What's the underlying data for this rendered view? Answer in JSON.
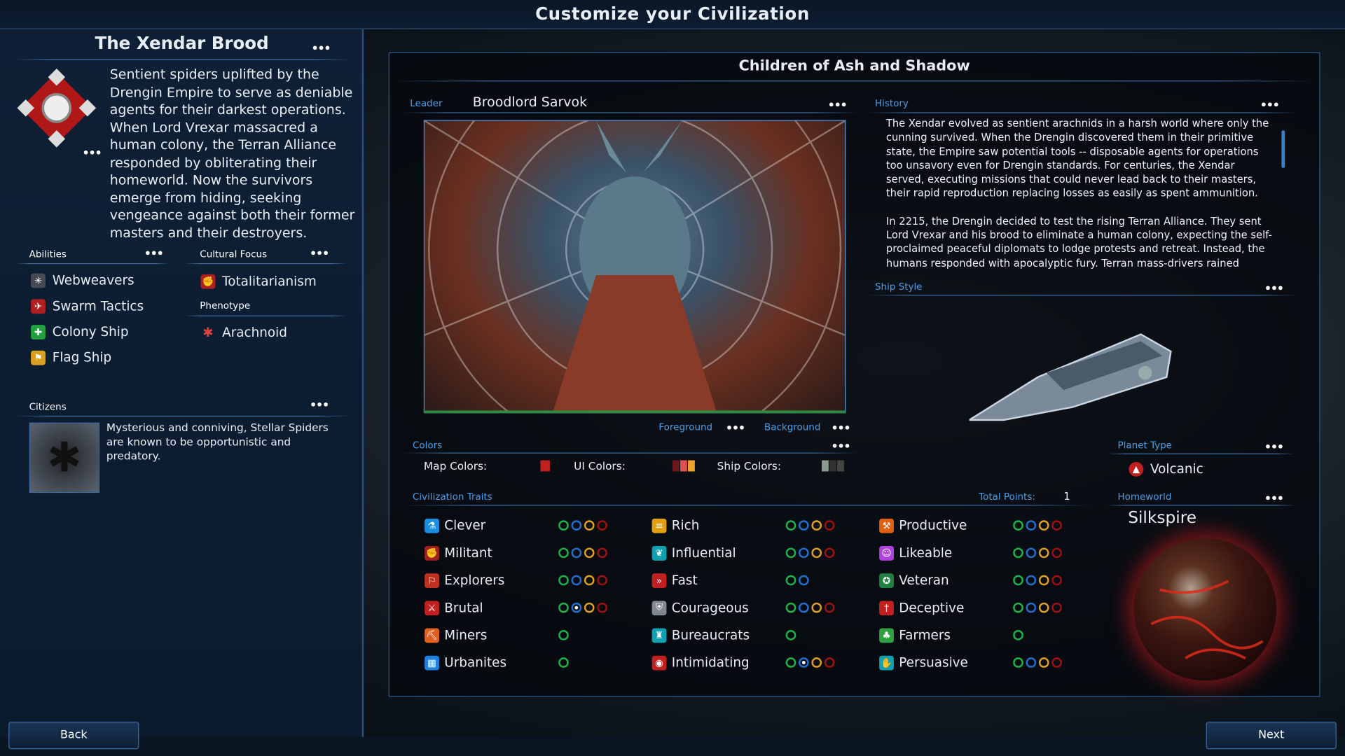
{
  "window": {
    "title": "Customize your Civilization"
  },
  "left": {
    "civ_name": "The Xendar Brood",
    "description": "Sentient spiders uplifted by the Drengin Empire to serve as deniable agents for their darkest operations. When Lord Vrexar massacred a human colony, the Terran Alliance responded by obliterating their homeworld. Now the survivors emerge from hiding, seeking vengeance against both their former masters and their destroyers.",
    "abilities_label": "Abilities",
    "abilities": [
      {
        "label": "Webweavers",
        "icon": "web-icon",
        "color": "#444b55"
      },
      {
        "label": "Swarm Tactics",
        "icon": "swarm-icon",
        "color": "#b02020"
      },
      {
        "label": "Colony Ship",
        "icon": "colony-ship-icon",
        "color": "#22a040"
      },
      {
        "label": "Flag Ship",
        "icon": "flag-ship-icon",
        "color": "#d8a020"
      }
    ],
    "cultural_focus_label": "Cultural Focus",
    "cultural_focus": "Totalitarianism",
    "phenotype_label": "Phenotype",
    "phenotype": "Arachnoid",
    "citizens_label": "Citizens",
    "citizens_text": "Mysterious and conniving, Stellar Spiders are known to be opportunistic and predatory."
  },
  "main": {
    "title": "Children of Ash and Shadow",
    "leader_label": "Leader",
    "leader": "Broodlord Sarvok",
    "foreground_label": "Foreground",
    "background_label": "Background",
    "history_label": "History",
    "history": [
      "The Xendar evolved as sentient arachnids in a harsh world where only the cunning survived. When the Drengin discovered them in their primitive state, the Empire saw potential tools -- disposable agents for operations too unsavory even for Drengin standards. For centuries, the Xendar served, executing missions that could never lead back to their masters, their rapid reproduction replacing losses as easily as spent ammunition.",
      "In 2215, the Drengin decided to test the rising Terran Alliance. They sent Lord Vrexar and his brood to eliminate a human colony, expecting the self-proclaimed peaceful diplomats to lodge protests and retreat. Instead, the humans responded with apocalyptic fury. Terran mass-drivers rained"
    ],
    "ship_style_label": "Ship Style",
    "colors_label": "Colors",
    "map_colors_label": "Map Colors:",
    "ui_colors_label": "UI Colors:",
    "ship_colors_label": "Ship Colors:",
    "map_colors": [
      "#c02020"
    ],
    "ui_colors": [
      "#6a1a1a",
      "#e05050",
      "#f0a030"
    ],
    "ship_colors": [
      "#8a9a90",
      "#333",
      "#444"
    ],
    "planet_type_label": "Planet Type",
    "planet_type": "Volcanic",
    "homeworld_label": "Homeworld",
    "homeworld": "Silkspire",
    "traits_label": "Civilization Traits",
    "total_points_label": "Total Points:",
    "total_points": "1",
    "trait_level_colors": [
      "#1db34a",
      "#1f6fd0",
      "#e0a020",
      "#a01010"
    ],
    "traits": [
      [
        {
          "label": "Clever",
          "icon": "flask-icon",
          "color": "#1a8ee0",
          "levels": 4,
          "selected": 0
        },
        {
          "label": "Militant",
          "icon": "fist-icon",
          "color": "#a02020",
          "levels": 4,
          "selected": 0
        },
        {
          "label": "Explorers",
          "icon": "explorer-icon",
          "color": "#c03020",
          "levels": 4,
          "selected": 0
        },
        {
          "label": "Brutal",
          "icon": "blade-icon",
          "color": "#c02020",
          "levels": 4,
          "selected": 2
        },
        {
          "label": "Miners",
          "icon": "pickaxe-icon",
          "color": "#e06020",
          "levels": 1,
          "selected": 0
        },
        {
          "label": "Urbanites",
          "icon": "city-icon",
          "color": "#2080e0",
          "levels": 1,
          "selected": 0
        }
      ],
      [
        {
          "label": "Rich",
          "icon": "coins-icon",
          "color": "#e0a010",
          "levels": 4,
          "selected": 0
        },
        {
          "label": "Influential",
          "icon": "influence-icon",
          "color": "#10a0b0",
          "levels": 4,
          "selected": 0
        },
        {
          "label": "Fast",
          "icon": "fast-forward-icon",
          "color": "#c02020",
          "levels": 2,
          "selected": 0
        },
        {
          "label": "Courageous",
          "icon": "shield-icon",
          "color": "#808890",
          "levels": 4,
          "selected": 0
        },
        {
          "label": "Bureaucrats",
          "icon": "bureaucrat-icon",
          "color": "#10a0b0",
          "levels": 1,
          "selected": 0
        },
        {
          "label": "Intimidating",
          "icon": "intimidate-icon",
          "color": "#c02020",
          "levels": 4,
          "selected": 2
        }
      ],
      [
        {
          "label": "Productive",
          "icon": "hammer-icon",
          "color": "#e06010",
          "levels": 4,
          "selected": 0
        },
        {
          "label": "Likeable",
          "icon": "smile-icon",
          "color": "#b040e0",
          "levels": 4,
          "selected": 0
        },
        {
          "label": "Veteran",
          "icon": "veteran-icon",
          "color": "#208040",
          "levels": 4,
          "selected": 0
        },
        {
          "label": "Deceptive",
          "icon": "dagger-icon",
          "color": "#c02020",
          "levels": 4,
          "selected": 0
        },
        {
          "label": "Farmers",
          "icon": "farmer-icon",
          "color": "#30a040",
          "levels": 1,
          "selected": 0
        },
        {
          "label": "Persuasive",
          "icon": "handshake-icon",
          "color": "#10a0b0",
          "levels": 4,
          "selected": 0
        }
      ]
    ]
  },
  "footer": {
    "back": "Back",
    "next": "Next"
  }
}
